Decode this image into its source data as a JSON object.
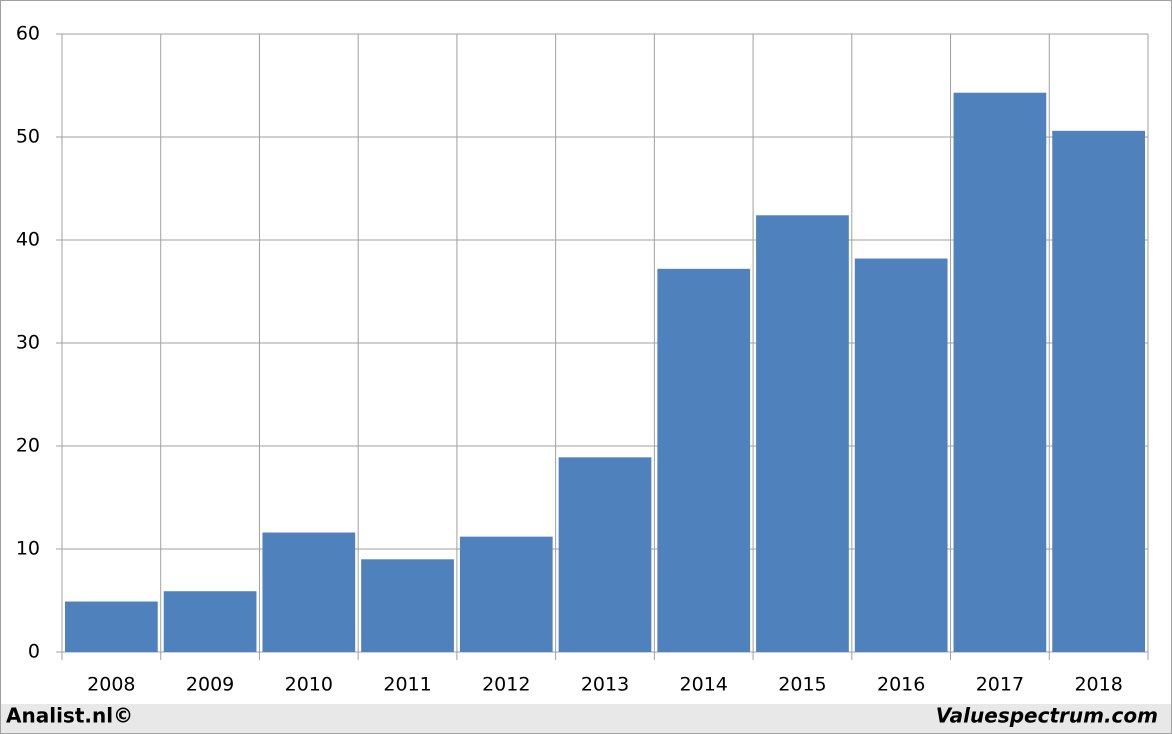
{
  "chart_data": {
    "type": "bar",
    "categories": [
      "2008",
      "2009",
      "2010",
      "2011",
      "2012",
      "2013",
      "2014",
      "2015",
      "2016",
      "2017",
      "2018"
    ],
    "values": [
      4.9,
      5.9,
      11.6,
      9.0,
      11.2,
      18.9,
      37.2,
      42.4,
      38.2,
      54.3,
      50.6
    ],
    "color": "#4f81bd",
    "ylim": [
      0,
      60
    ],
    "yticks": [
      0,
      10,
      20,
      30,
      40,
      50,
      60
    ],
    "grid": true
  },
  "footer": {
    "left": "Analist.nl©",
    "right": "Valuespectrum.com"
  }
}
